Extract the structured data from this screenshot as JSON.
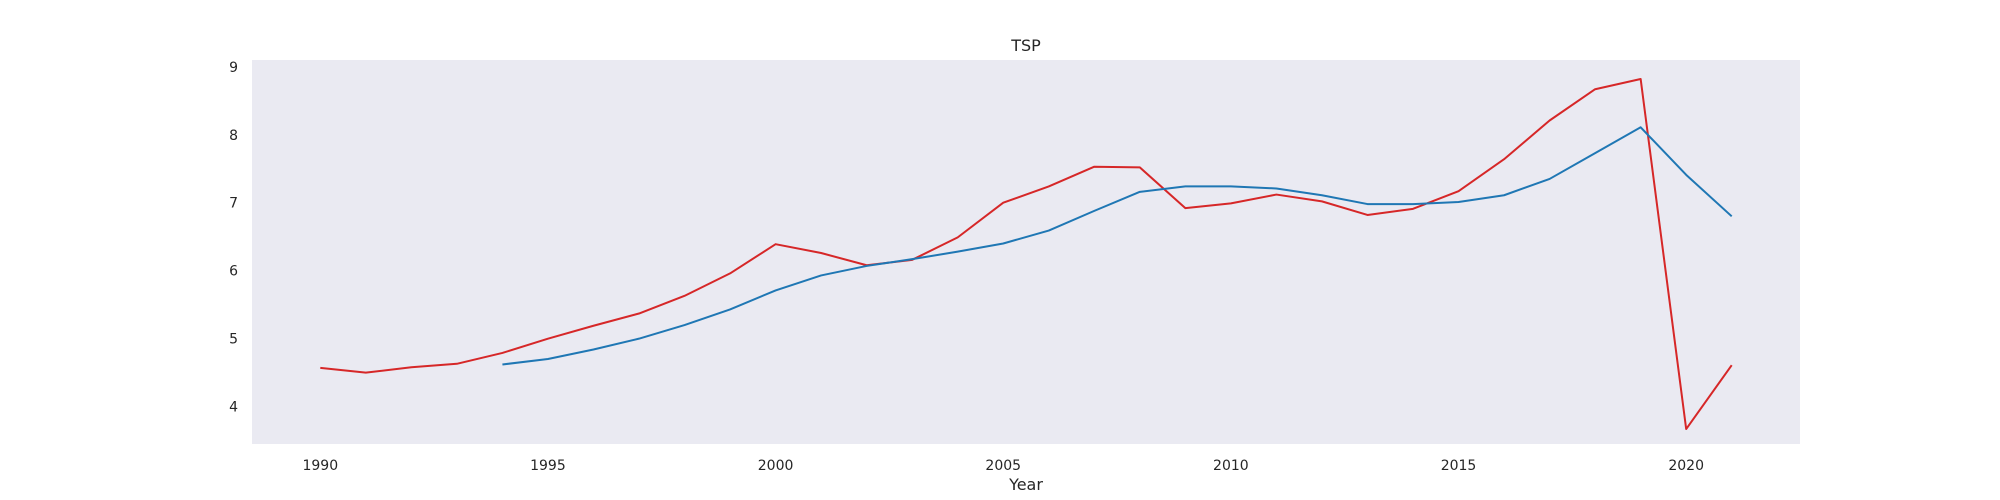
{
  "chart_data": {
    "type": "line",
    "title": "TSP",
    "xlabel": "Year",
    "ylabel": "",
    "xlim": [
      1988.5,
      2022.5
    ],
    "ylim": [
      3.45,
      9.1
    ],
    "xticks": [
      1990,
      1995,
      2000,
      2005,
      2010,
      2015,
      2020
    ],
    "yticks": [
      4,
      5,
      6,
      7,
      8,
      9
    ],
    "grid": false,
    "background": "#eaeaf2",
    "series": [
      {
        "color": "#d62728",
        "x": [
          1990,
          1991,
          1992,
          1993,
          1994,
          1995,
          1996,
          1997,
          1998,
          1999,
          2000,
          2001,
          2002,
          2003,
          2004,
          2005,
          2006,
          2007,
          2008,
          2009,
          2010,
          2011,
          2012,
          2013,
          2014,
          2015,
          2016,
          2017,
          2018,
          2019,
          2020,
          2021
        ],
        "values": [
          4.57,
          4.5,
          4.58,
          4.63,
          4.79,
          5.0,
          5.19,
          5.37,
          5.63,
          5.96,
          6.39,
          6.26,
          6.08,
          6.16,
          6.49,
          7.0,
          7.24,
          7.53,
          7.52,
          6.92,
          6.99,
          7.12,
          7.02,
          6.82,
          6.91,
          7.17,
          7.64,
          8.21,
          8.67,
          8.82,
          3.67,
          4.61
        ]
      },
      {
        "color": "#1f77b4",
        "x": [
          1994,
          1995,
          1996,
          1997,
          1998,
          1999,
          2000,
          2001,
          2002,
          2003,
          2004,
          2005,
          2006,
          2007,
          2008,
          2009,
          2010,
          2011,
          2012,
          2013,
          2014,
          2015,
          2016,
          2017,
          2018,
          2019,
          2020,
          2021
        ],
        "values": [
          4.62,
          4.7,
          4.84,
          5.0,
          5.2,
          5.43,
          5.71,
          5.93,
          6.07,
          6.17,
          6.28,
          6.4,
          6.59,
          6.88,
          7.16,
          7.24,
          7.24,
          7.21,
          7.11,
          6.98,
          6.98,
          7.01,
          7.11,
          7.35,
          7.73,
          8.11,
          7.41,
          6.8
        ]
      }
    ]
  }
}
